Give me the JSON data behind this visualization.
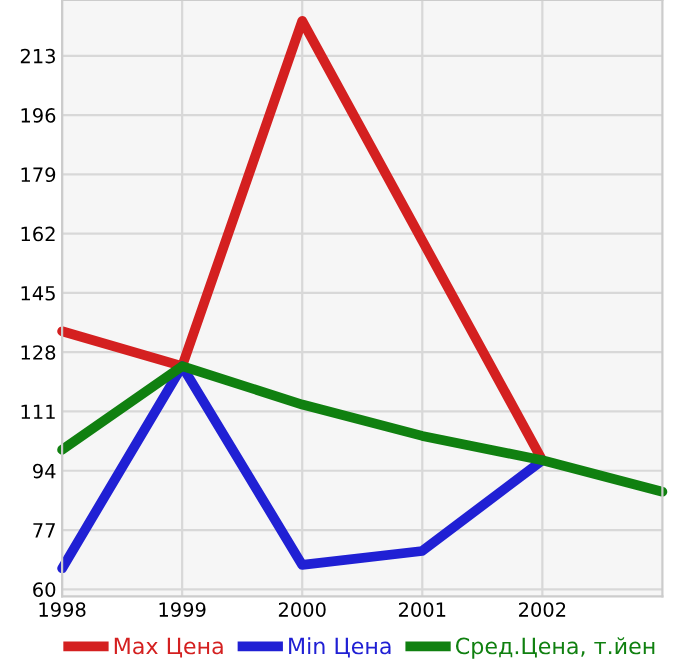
{
  "chart_data": {
    "type": "line",
    "x": [
      1998,
      1999,
      2000,
      2001,
      2002,
      2003
    ],
    "series": [
      {
        "name": "Max Цена",
        "color": "#d42020",
        "values": [
          134,
          124,
          223,
          160,
          97,
          null
        ]
      },
      {
        "name": "Min Цена",
        "color": "#2020d4",
        "values": [
          66,
          124,
          67,
          71,
          97,
          null
        ]
      },
      {
        "name": "Сред.Цена, т.йен",
        "color": "#108010",
        "values": [
          100,
          124,
          113,
          104,
          97,
          88
        ]
      }
    ],
    "xlim": [
      1998,
      2003
    ],
    "xticks": [
      1998,
      1999,
      2000,
      2001,
      2002
    ],
    "ylim": [
      58,
      229
    ],
    "yticks": [
      60,
      77,
      94,
      111,
      128,
      145,
      162,
      179,
      196,
      213
    ],
    "grid": true,
    "legend": "bottom",
    "marker": "none",
    "line_style": "solid"
  }
}
